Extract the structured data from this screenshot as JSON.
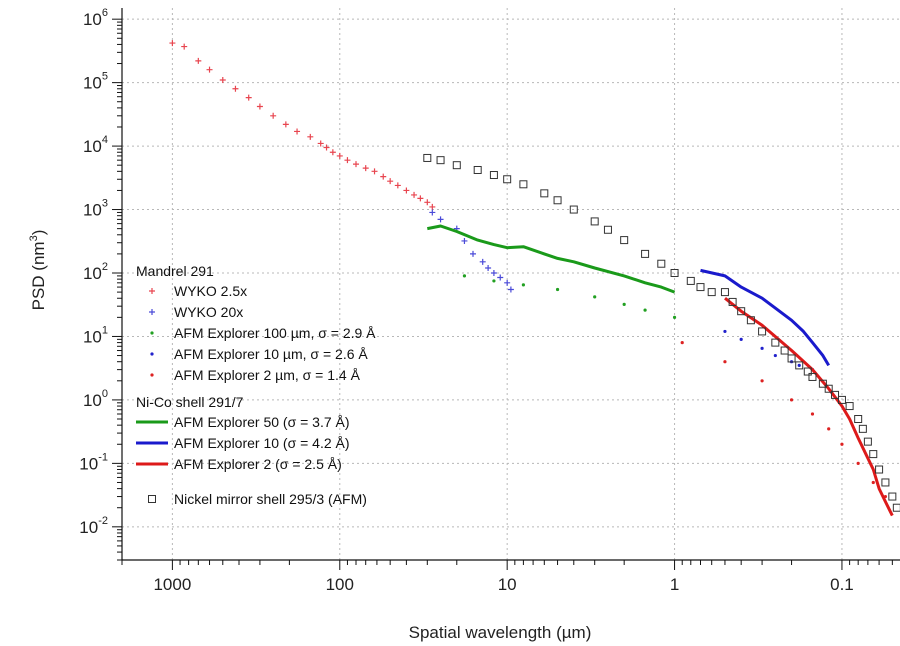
{
  "chart_data": {
    "type": "scatter",
    "x_scale": "log",
    "y_scale": "log",
    "x_reversed": true,
    "xlim": [
      0.045,
      2000
    ],
    "ylim": [
      0.003,
      1500000
    ],
    "xlabel": "Spatial wavelength (µm)",
    "ylabel": "PSD (nm",
    "ylabel_superscript": "3",
    "ylabel_suffix": ")",
    "grid": true,
    "x_ticks": [
      {
        "value": 1000,
        "label": "1000"
      },
      {
        "value": 100,
        "label": "100"
      },
      {
        "value": 10,
        "label": "10"
      },
      {
        "value": 1,
        "label": "1"
      },
      {
        "value": 0.1,
        "label": "0.1"
      }
    ],
    "y_ticks": [
      {
        "value": 1000000,
        "base": "10",
        "exp": "6"
      },
      {
        "value": 100000,
        "base": "10",
        "exp": "5"
      },
      {
        "value": 10000,
        "base": "10",
        "exp": "4"
      },
      {
        "value": 1000,
        "base": "10",
        "exp": "3"
      },
      {
        "value": 100,
        "base": "10",
        "exp": "2"
      },
      {
        "value": 10,
        "base": "10",
        "exp": "1"
      },
      {
        "value": 1,
        "base": "10",
        "exp": "0"
      },
      {
        "value": 0.1,
        "base": "10",
        "exp": "-1"
      },
      {
        "value": 0.01,
        "base": "10",
        "exp": "-2"
      }
    ],
    "legend": {
      "position": "left",
      "groups": [
        {
          "heading": "Mandrel 291",
          "entries": [
            {
              "label": "WYKO 2.5x",
              "marker": "plus",
              "color": "#e8454f"
            },
            {
              "label": "WYKO 20x",
              "marker": "plus",
              "color": "#4a4ad8"
            },
            {
              "label": "AFM Explorer 100 µm, σ = 2.9 Å",
              "marker": "dot",
              "color": "#22a022"
            },
            {
              "label": "AFM Explorer 10 µm, σ = 2.6 Å",
              "marker": "dot",
              "color": "#2222cc"
            },
            {
              "label": "AFM Explorer 2 µm, σ = 1.4 Å",
              "marker": "dot",
              "color": "#dd2222"
            }
          ]
        },
        {
          "heading": "Ni-Co shell 291/7",
          "entries": [
            {
              "label": "AFM Explorer 50 (σ = 3.7 Å)",
              "marker": "line",
              "color": "#1a9a1a"
            },
            {
              "label": "AFM Explorer 10 (σ = 4.2 Å)",
              "marker": "line",
              "color": "#1a1acc"
            },
            {
              "label": "AFM Explorer 2 (σ = 2.5 Å)",
              "marker": "line",
              "color": "#dd1a1a"
            }
          ]
        },
        {
          "heading": "",
          "entries": [
            {
              "label": "Nickel mirror shell 295/3 (AFM)",
              "marker": "square",
              "color": "#333333"
            }
          ]
        }
      ]
    },
    "series": [
      {
        "name": "WYKO 2.5x",
        "marker": "plus",
        "color": "#e8454f",
        "points": [
          [
            1000,
            420000
          ],
          [
            850,
            370000
          ],
          [
            700,
            220000
          ],
          [
            600,
            160000
          ],
          [
            500,
            110000
          ],
          [
            420,
            80000
          ],
          [
            350,
            58000
          ],
          [
            300,
            42000
          ],
          [
            250,
            30000
          ],
          [
            210,
            22000
          ],
          [
            180,
            17000
          ],
          [
            150,
            14000
          ],
          [
            130,
            11000
          ],
          [
            120,
            9500
          ],
          [
            110,
            8000
          ],
          [
            100,
            7000
          ],
          [
            90,
            6000
          ],
          [
            80,
            5200
          ],
          [
            70,
            4500
          ],
          [
            62,
            4000
          ],
          [
            55,
            3300
          ],
          [
            50,
            2800
          ],
          [
            45,
            2400
          ],
          [
            40,
            2000
          ],
          [
            36,
            1700
          ],
          [
            33,
            1500
          ],
          [
            30,
            1300
          ],
          [
            28,
            1100
          ]
        ]
      },
      {
        "name": "WYKO 20x",
        "marker": "plus",
        "color": "#4a4ad8",
        "points": [
          [
            28,
            900
          ],
          [
            25,
            700
          ],
          [
            20,
            500
          ],
          [
            18,
            320
          ],
          [
            16,
            200
          ],
          [
            14,
            150
          ],
          [
            13,
            120
          ],
          [
            12,
            100
          ],
          [
            11,
            85
          ],
          [
            10,
            70
          ],
          [
            9.5,
            55
          ]
        ]
      },
      {
        "name": "AFM Explorer 100 µm, σ = 2.9 Å",
        "marker": "dot",
        "color": "#22a022",
        "points": [
          [
            18,
            90
          ],
          [
            12,
            75
          ],
          [
            8,
            65
          ],
          [
            5,
            55
          ],
          [
            3,
            42
          ],
          [
            2,
            32
          ],
          [
            1.5,
            26
          ],
          [
            1,
            20
          ]
        ]
      },
      {
        "name": "AFM Explorer 10 µm, σ = 2.6 Å",
        "marker": "dot",
        "color": "#2222cc",
        "points": [
          [
            0.5,
            12
          ],
          [
            0.4,
            9
          ],
          [
            0.3,
            6.5
          ],
          [
            0.25,
            5
          ],
          [
            0.2,
            4
          ],
          [
            0.18,
            3.5
          ],
          [
            0.15,
            3
          ]
        ]
      },
      {
        "name": "AFM Explorer 2 µm, σ = 1.4 Å",
        "marker": "dot",
        "color": "#dd2222",
        "points": [
          [
            0.9,
            8
          ],
          [
            0.5,
            4
          ],
          [
            0.3,
            2
          ],
          [
            0.2,
            1
          ],
          [
            0.15,
            0.6
          ],
          [
            0.12,
            0.35
          ],
          [
            0.1,
            0.2
          ],
          [
            0.08,
            0.1
          ],
          [
            0.065,
            0.05
          ],
          [
            0.055,
            0.03
          ]
        ]
      },
      {
        "name": "AFM Explorer 50 (σ = 3.7 Å)",
        "marker": "line",
        "color": "#1a9a1a",
        "points": [
          [
            30,
            500
          ],
          [
            25,
            550
          ],
          [
            20,
            450
          ],
          [
            15,
            330
          ],
          [
            12,
            280
          ],
          [
            10,
            250
          ],
          [
            8,
            260
          ],
          [
            6,
            200
          ],
          [
            5,
            170
          ],
          [
            4,
            150
          ],
          [
            3,
            120
          ],
          [
            2,
            90
          ],
          [
            1.5,
            70
          ],
          [
            1.2,
            60
          ],
          [
            1,
            50
          ]
        ]
      },
      {
        "name": "AFM Explorer 10 (σ = 4.2 Å)",
        "marker": "line",
        "color": "#1a1acc",
        "points": [
          [
            0.7,
            110
          ],
          [
            0.5,
            90
          ],
          [
            0.4,
            60
          ],
          [
            0.3,
            40
          ],
          [
            0.25,
            28
          ],
          [
            0.2,
            18
          ],
          [
            0.17,
            12
          ],
          [
            0.15,
            8
          ],
          [
            0.13,
            5
          ],
          [
            0.12,
            3.5
          ]
        ]
      },
      {
        "name": "AFM Explorer 2 (σ = 2.5 Å)",
        "marker": "line",
        "color": "#dd1a1a",
        "points": [
          [
            0.5,
            40
          ],
          [
            0.4,
            25
          ],
          [
            0.3,
            15
          ],
          [
            0.2,
            6
          ],
          [
            0.15,
            3
          ],
          [
            0.12,
            1.5
          ],
          [
            0.1,
            0.8
          ],
          [
            0.09,
            0.5
          ],
          [
            0.08,
            0.25
          ],
          [
            0.07,
            0.12
          ],
          [
            0.065,
            0.08
          ],
          [
            0.06,
            0.04
          ],
          [
            0.055,
            0.025
          ],
          [
            0.05,
            0.015
          ]
        ]
      },
      {
        "name": "Nickel mirror shell 295/3 (AFM)",
        "marker": "square",
        "color": "#333333",
        "points": [
          [
            30,
            6500
          ],
          [
            25,
            6000
          ],
          [
            20,
            5000
          ],
          [
            15,
            4200
          ],
          [
            12,
            3500
          ],
          [
            10,
            3000
          ],
          [
            8,
            2500
          ],
          [
            6,
            1800
          ],
          [
            5,
            1400
          ],
          [
            4,
            1000
          ],
          [
            3,
            650
          ],
          [
            2.5,
            480
          ],
          [
            2,
            330
          ],
          [
            1.5,
            200
          ],
          [
            1.2,
            140
          ],
          [
            1,
            100
          ],
          [
            0.8,
            75
          ],
          [
            0.7,
            60
          ],
          [
            0.6,
            50
          ],
          [
            0.5,
            50
          ],
          [
            0.45,
            35
          ],
          [
            0.4,
            25
          ],
          [
            0.35,
            18
          ],
          [
            0.3,
            12
          ],
          [
            0.25,
            8
          ],
          [
            0.22,
            6
          ],
          [
            0.2,
            4.5
          ],
          [
            0.18,
            3.5
          ],
          [
            0.16,
            2.8
          ],
          [
            0.15,
            2.3
          ],
          [
            0.13,
            1.8
          ],
          [
            0.12,
            1.5
          ],
          [
            0.11,
            1.2
          ],
          [
            0.1,
            1
          ],
          [
            0.09,
            0.8
          ],
          [
            0.08,
            0.5
          ],
          [
            0.075,
            0.35
          ],
          [
            0.07,
            0.22
          ],
          [
            0.065,
            0.14
          ],
          [
            0.06,
            0.08
          ],
          [
            0.055,
            0.05
          ],
          [
            0.05,
            0.03
          ],
          [
            0.047,
            0.02
          ]
        ]
      }
    ]
  }
}
